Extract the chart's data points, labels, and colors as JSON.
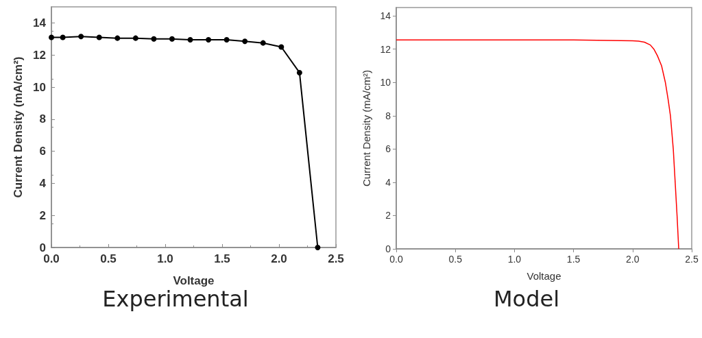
{
  "chart_data": [
    {
      "type": "line",
      "xlabel": "Voltage",
      "ylabel": "Current Density (mA/cm²)",
      "annotations": [
        "Experimental"
      ],
      "marker": "circle",
      "grid": false,
      "xlim": [
        0,
        2.5
      ],
      "xticks": [
        {
          "value": 0,
          "label": "0.0"
        },
        0.5,
        {
          "value": 1,
          "label": "1.0"
        },
        1.5,
        {
          "value": 2,
          "label": "2.0"
        },
        2.5
      ],
      "ylim": [
        0,
        15
      ],
      "yticks": [
        0,
        2,
        4,
        6,
        8,
        10,
        12,
        14
      ],
      "series": [
        {
          "color": "#000000",
          "x": [
            0,
            0.1,
            0.26,
            0.42,
            0.58,
            0.74,
            0.9,
            1.06,
            1.22,
            1.38,
            1.54,
            1.7,
            1.86,
            2.02,
            2.18,
            2.34
          ],
          "values": [
            13.1,
            13.1,
            13.15,
            13.1,
            13.05,
            13.05,
            13.0,
            13.0,
            12.95,
            12.95,
            12.95,
            12.85,
            12.75,
            12.5,
            10.9,
            0
          ]
        }
      ]
    },
    {
      "type": "line",
      "xlabel": "Voltage",
      "ylabel": "Current Density (mA/cm²)",
      "annotations": [
        "Model"
      ],
      "marker": "none",
      "grid": false,
      "xlim": [
        0,
        2.5
      ],
      "xticks": [
        {
          "value": 0,
          "label": "0.0"
        },
        0.5,
        {
          "value": 1,
          "label": "1.0"
        },
        1.5,
        {
          "value": 2,
          "label": "2.0"
        },
        2.5
      ],
      "ylim": [
        0,
        14.5
      ],
      "yticks": [
        0,
        2,
        4,
        6,
        8,
        10,
        12,
        14
      ],
      "series": [
        {
          "color": "#ff0000",
          "x": [
            0,
            0.5,
            1.0,
            1.5,
            2.0,
            2.05,
            2.1,
            2.15,
            2.18,
            2.21,
            2.245,
            2.277,
            2.3,
            2.32,
            2.344,
            2.36,
            2.376,
            2.39
          ],
          "values": [
            12.55,
            12.55,
            12.55,
            12.55,
            12.5,
            12.48,
            12.42,
            12.25,
            12.0,
            11.6,
            11.0,
            10.0,
            9.0,
            8.0,
            6.0,
            4.0,
            2.0,
            0
          ]
        }
      ]
    }
  ]
}
